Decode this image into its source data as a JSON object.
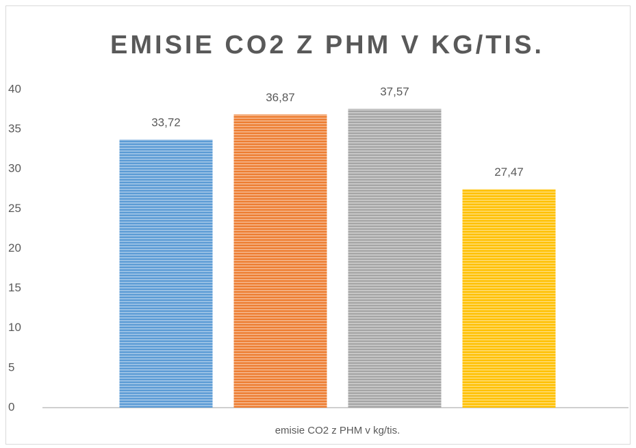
{
  "chart_data": {
    "type": "bar",
    "title": "EMISIE CO2 Z PHM V KG/TIS.",
    "categories": [
      "emisie CO2 z PHM v kg/tis."
    ],
    "series": [
      {
        "color": "#5b9bd5",
        "values": [
          33.72
        ],
        "value_labels": [
          "33,72"
        ]
      },
      {
        "color": "#ed7d31",
        "values": [
          36.87
        ],
        "value_labels": [
          "36,87"
        ]
      },
      {
        "color": "#a5a5a5",
        "values": [
          37.57
        ],
        "value_labels": [
          "37,57"
        ]
      },
      {
        "color": "#ffc000",
        "values": [
          27.47
        ],
        "value_labels": [
          "27,47"
        ]
      }
    ],
    "ylim": [
      0,
      40
    ],
    "yticks": [
      0,
      5,
      10,
      15,
      20,
      25,
      30,
      35,
      40
    ],
    "grid": false
  }
}
